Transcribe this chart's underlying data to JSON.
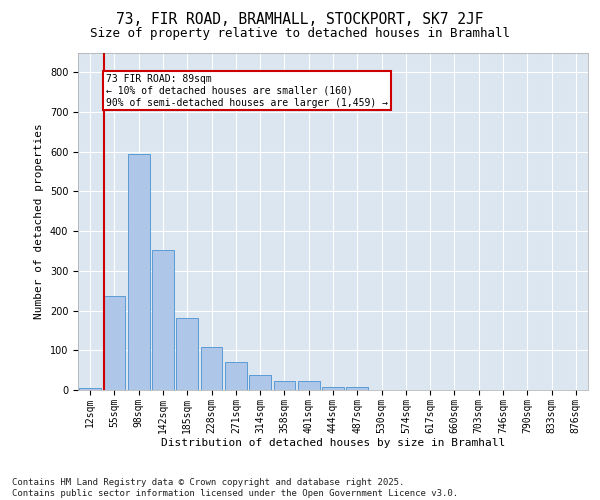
{
  "title1": "73, FIR ROAD, BRAMHALL, STOCKPORT, SK7 2JF",
  "title2": "Size of property relative to detached houses in Bramhall",
  "xlabel": "Distribution of detached houses by size in Bramhall",
  "ylabel": "Number of detached properties",
  "bin_labels": [
    "12sqm",
    "55sqm",
    "98sqm",
    "142sqm",
    "185sqm",
    "228sqm",
    "271sqm",
    "314sqm",
    "358sqm",
    "401sqm",
    "444sqm",
    "487sqm",
    "530sqm",
    "574sqm",
    "617sqm",
    "660sqm",
    "703sqm",
    "746sqm",
    "790sqm",
    "833sqm",
    "876sqm"
  ],
  "bar_values": [
    5,
    237,
    595,
    352,
    182,
    109,
    70,
    38,
    22,
    22,
    8,
    8,
    0,
    0,
    0,
    0,
    0,
    0,
    0,
    0,
    0
  ],
  "bar_color": "#aec6e8",
  "bar_edge_color": "#5b9bd5",
  "background_color": "#dce6f1",
  "grid_color": "#ffffff",
  "vline_color": "#cc0000",
  "vline_pos": 0.55,
  "annotation_text": "73 FIR ROAD: 89sqm\n← 10% of detached houses are smaller (160)\n90% of semi-detached houses are larger (1,459) →",
  "annotation_box_color": "#ffffff",
  "annotation_box_edge": "#cc0000",
  "ylim": [
    0,
    850
  ],
  "yticks": [
    0,
    100,
    200,
    300,
    400,
    500,
    600,
    700,
    800
  ],
  "footer_text": "Contains HM Land Registry data © Crown copyright and database right 2025.\nContains public sector information licensed under the Open Government Licence v3.0.",
  "title1_fontsize": 10.5,
  "title2_fontsize": 9,
  "axis_fontsize": 8,
  "tick_fontsize": 7,
  "footer_fontsize": 6.5
}
